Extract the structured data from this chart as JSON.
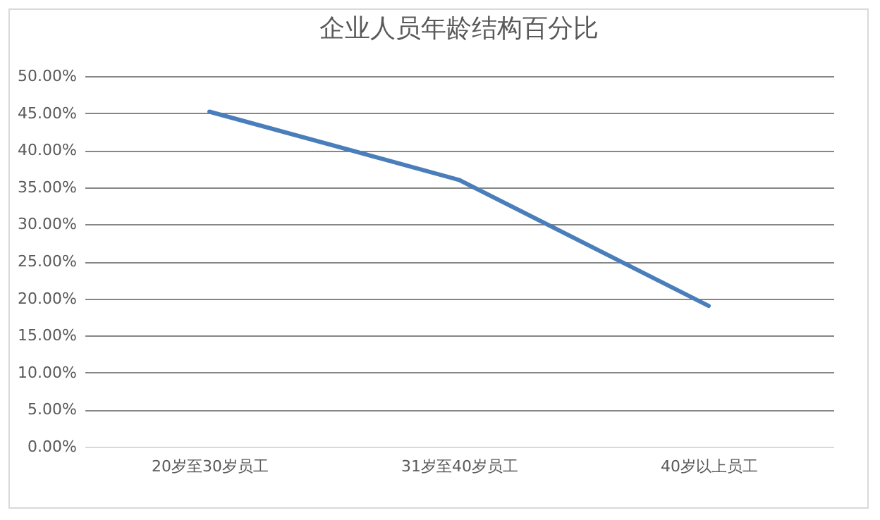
{
  "chart_data": {
    "type": "line",
    "title": "企业人员年龄结构百分比",
    "categories": [
      "20岁至30岁员工",
      "31岁至40岁员工",
      "40岁以上员工"
    ],
    "series": [
      {
        "color": "#4a7ebb",
        "values": [
          45.2,
          36,
          19
        ]
      }
    ],
    "ylim": [
      0,
      50
    ],
    "yticks": [
      {
        "value": 0,
        "label": "0.00%"
      },
      {
        "value": 5,
        "label": "5.00%"
      },
      {
        "value": 10,
        "label": "10.00%"
      },
      {
        "value": 15,
        "label": "15.00%"
      },
      {
        "value": 20,
        "label": "20.00%"
      },
      {
        "value": 25,
        "label": "25.00%"
      },
      {
        "value": 30,
        "label": "30.00%"
      },
      {
        "value": 35,
        "label": "35.00%"
      },
      {
        "value": 40,
        "label": "40.00%"
      },
      {
        "value": 45,
        "label": "45.00%"
      },
      {
        "value": 50,
        "label": "50.00%"
      }
    ],
    "grid": "y",
    "legend": false,
    "marker": "none",
    "line_style": "solid"
  }
}
